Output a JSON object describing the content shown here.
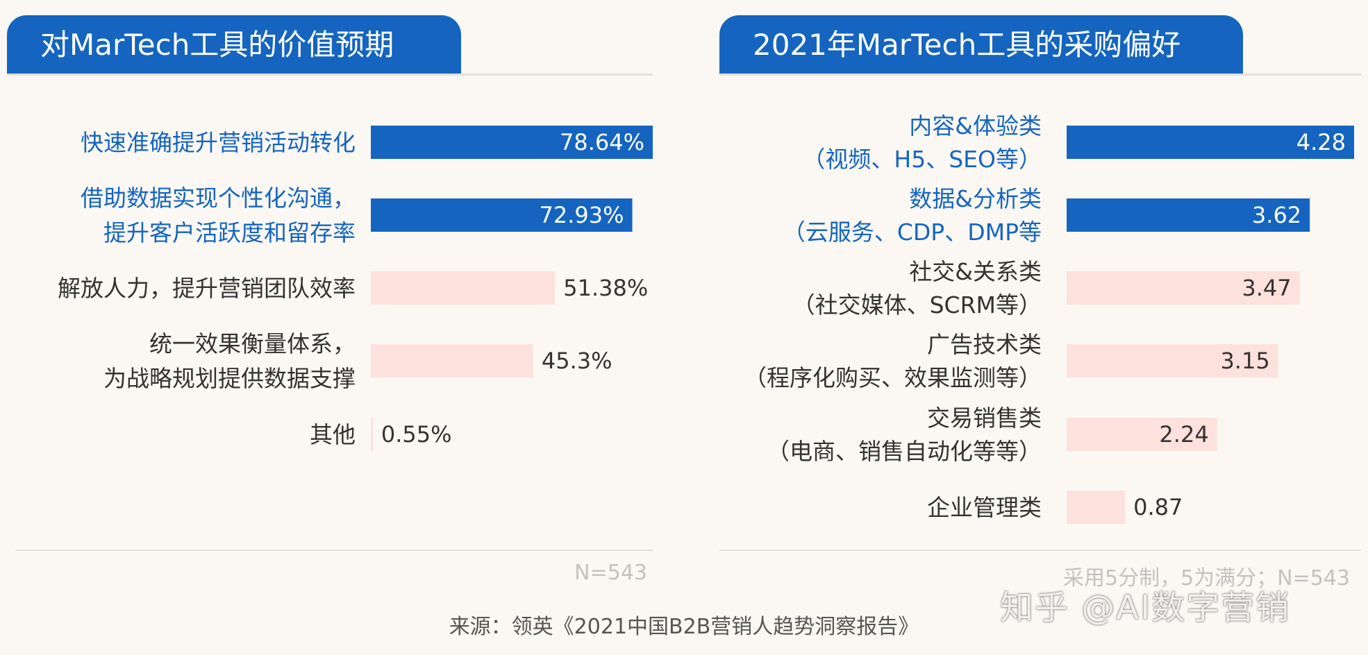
{
  "colors": {
    "highlight": "#1565c0",
    "muted": "#fde1dc",
    "label_highlight": "#1565c0",
    "label_normal": "#333333",
    "value_on_dark": "#ffffff",
    "value_normal": "#333333"
  },
  "left": {
    "title": "对MarTech工具的价值预期",
    "note": "N=543"
  },
  "right": {
    "title": "2021年MarTech工具的采购偏好",
    "note": "采用5分制，5为满分；N=543"
  },
  "source": "来源：领英《2021中国B2B营销人趋势洞察报告》",
  "watermark": "知乎 @AI数字营销",
  "chart_data": [
    {
      "type": "bar",
      "orientation": "horizontal",
      "title": "对MarTech工具的价值预期",
      "unit": "%",
      "xlim": [
        0,
        78.64
      ],
      "bars": [
        {
          "label_lines": [
            "快速准确提升营销活动转化"
          ],
          "value": 78.64,
          "display": "78.64%",
          "highlight": true
        },
        {
          "label_lines": [
            "借助数据实现个性化沟通，",
            "提升客户活跃度和留存率"
          ],
          "value": 72.93,
          "display": "72.93%",
          "highlight": true
        },
        {
          "label_lines": [
            "解放人力，提升营销团队效率"
          ],
          "value": 51.38,
          "display": "51.38%",
          "highlight": false
        },
        {
          "label_lines": [
            "统一效果衡量体系，",
            "为战略规划提供数据支撑"
          ],
          "value": 45.3,
          "display": "45.3%",
          "highlight": false
        },
        {
          "label_lines": [
            "其他"
          ],
          "value": 0.55,
          "display": "0.55%",
          "highlight": false
        }
      ],
      "note": "N=543"
    },
    {
      "type": "bar",
      "orientation": "horizontal",
      "title": "2021年MarTech工具的采购偏好",
      "scale": "5分制",
      "xlim": [
        0,
        4.28
      ],
      "bars": [
        {
          "label_lines": [
            "内容&体验类",
            "（视频、H5、SEO等）"
          ],
          "value": 4.28,
          "display": "4.28",
          "highlight": true
        },
        {
          "label_lines": [
            "数据&分析类",
            "（云服务、CDP、DMP等"
          ],
          "value": 3.62,
          "display": "3.62",
          "highlight": true
        },
        {
          "label_lines": [
            "社交&关系类",
            "（社交媒体、SCRM等）"
          ],
          "value": 3.47,
          "display": "3.47",
          "highlight": false
        },
        {
          "label_lines": [
            "广告技术类",
            "（程序化购买、效果监测等）"
          ],
          "value": 3.15,
          "display": "3.15",
          "highlight": false
        },
        {
          "label_lines": [
            "交易销售类",
            "（电商、销售自动化等等）"
          ],
          "value": 2.24,
          "display": "2.24",
          "highlight": false
        },
        {
          "label_lines": [
            "企业管理类"
          ],
          "value": 0.87,
          "display": "0.87",
          "highlight": false
        }
      ],
      "note": "采用5分制，5为满分；N=543"
    }
  ]
}
